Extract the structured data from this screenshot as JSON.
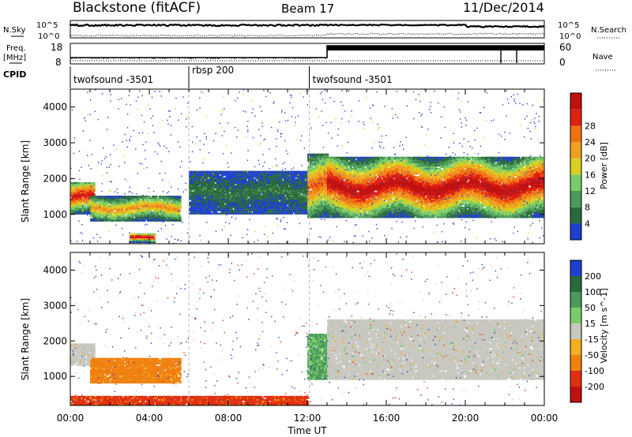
{
  "header": {
    "station": "Blackstone (fitACF)",
    "beam": "Beam 17",
    "date": "11/Dec/2014"
  },
  "top_panels": {
    "nsky_label": "N.Sky",
    "nsky_max": "10^5",
    "nsky_min": "10^0",
    "nsearch_label": "N.Search",
    "nsearch_max": "10^5",
    "nsearch_min": "10^0",
    "freq_label": "Freq.",
    "freq_unit": "[MHz]",
    "freq_max": "18",
    "freq_min": "8",
    "nave_label": "Nave",
    "nave_max": "60",
    "nave_min": "0",
    "cpid_label": "CPID"
  },
  "cpid_segments": [
    {
      "label": "twofsound -3501",
      "start_hour": 0,
      "end_hour": 6
    },
    {
      "label": "rbsp 200",
      "start_hour": 6,
      "end_hour": 12.1
    },
    {
      "label": "twofsound -3501",
      "start_hour": 12.1,
      "end_hour": 24
    }
  ],
  "colors": {
    "power_scale": [
      "#1e3fd0",
      "#2a6a3a",
      "#4a9a5a",
      "#7acc6a",
      "#d8d020",
      "#f0a020",
      "#f07010",
      "#e02010",
      "#c01010"
    ],
    "velocity_scale": [
      "#1e3fd0",
      "#2a6a3a",
      "#4a9a5a",
      "#7acc6a",
      "#c8c8c0",
      "#f0b020",
      "#f08010",
      "#e03010",
      "#c01010"
    ],
    "ground_scatter": "#c8c8c0"
  },
  "chart_data": [
    {
      "type": "heatmap",
      "title": "Power",
      "xlabel": "",
      "ylabel": "Slant Range [km]",
      "xlim": [
        0,
        24
      ],
      "ylim": [
        180,
        4500
      ],
      "x_ticks": [
        "00:00",
        "04:00",
        "08:00",
        "12:00",
        "16:00",
        "20:00",
        "00:00"
      ],
      "y_ticks": [
        "1000",
        "2000",
        "3000",
        "4000"
      ],
      "colorbar_label": "Power [dB]",
      "colorbar_ticks": [
        "4",
        "8",
        "12",
        "16",
        "20",
        "24",
        "28"
      ],
      "colorbar_range": [
        0,
        30
      ],
      "features": [
        {
          "hours": [
            0,
            1.2
          ],
          "range_km": [
            1000,
            1900
          ],
          "peak_db": 28
        },
        {
          "hours": [
            1.0,
            5.5
          ],
          "range_km": [
            800,
            1500
          ],
          "peak_db": 20
        },
        {
          "hours": [
            3.0,
            4.2
          ],
          "range_km": [
            200,
            450
          ],
          "peak_db": 30
        },
        {
          "hours": [
            6.0,
            12.0
          ],
          "range_km": [
            1000,
            2200
          ],
          "peak_db": 6
        },
        {
          "hours": [
            12.0,
            13.0
          ],
          "range_km": [
            900,
            2700
          ],
          "peak_db": 24
        },
        {
          "hours": [
            13.0,
            24.0
          ],
          "range_km": [
            900,
            2600
          ],
          "peak_db": 30
        }
      ]
    },
    {
      "type": "heatmap",
      "title": "Velocity",
      "xlabel": "Time UT",
      "ylabel": "Slant Range [km]",
      "xlim": [
        0,
        24
      ],
      "ylim": [
        180,
        4500
      ],
      "x_ticks": [
        "00:00",
        "04:00",
        "08:00",
        "12:00",
        "16:00",
        "20:00",
        "00:00"
      ],
      "y_ticks": [
        "1000",
        "2000",
        "3000",
        "4000"
      ],
      "colorbar_label": "Velocity [m s^-1]",
      "colorbar_ticks": [
        "200",
        "100",
        "50",
        "15",
        "-15",
        "-50",
        "-100",
        "-200"
      ],
      "colorbar_range": [
        -250,
        250
      ],
      "features": [
        {
          "hours": [
            0,
            1.2
          ],
          "range_km": [
            1300,
            1900
          ],
          "velocity": 0
        },
        {
          "hours": [
            1.0,
            5.5
          ],
          "range_km": [
            800,
            1500
          ],
          "velocity": -50
        },
        {
          "hours": [
            0,
            12.0
          ],
          "range_km": [
            180,
            450
          ],
          "velocity": -90
        },
        {
          "hours": [
            12.0,
            13.0
          ],
          "range_km": [
            900,
            2200
          ],
          "velocity": 40
        },
        {
          "hours": [
            13.0,
            24.0
          ],
          "range_km": [
            900,
            2600
          ],
          "velocity": 0
        }
      ]
    }
  ],
  "xaxis_label": "Time UT"
}
